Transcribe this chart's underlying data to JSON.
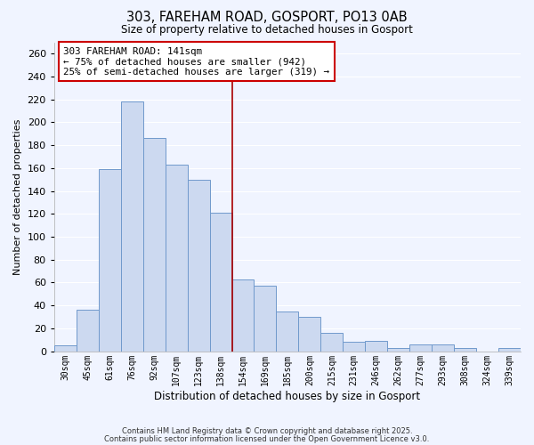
{
  "title": "303, FAREHAM ROAD, GOSPORT, PO13 0AB",
  "subtitle": "Size of property relative to detached houses in Gosport",
  "xlabel": "Distribution of detached houses by size in Gosport",
  "ylabel": "Number of detached properties",
  "bar_color": "#ccd9f0",
  "bar_edge_color": "#7099cc",
  "background_color": "#f0f4ff",
  "grid_color": "#ffffff",
  "categories": [
    "30sqm",
    "45sqm",
    "61sqm",
    "76sqm",
    "92sqm",
    "107sqm",
    "123sqm",
    "138sqm",
    "154sqm",
    "169sqm",
    "185sqm",
    "200sqm",
    "215sqm",
    "231sqm",
    "246sqm",
    "262sqm",
    "277sqm",
    "293sqm",
    "308sqm",
    "324sqm",
    "339sqm"
  ],
  "values": [
    5,
    36,
    159,
    218,
    186,
    163,
    150,
    121,
    63,
    57,
    35,
    30,
    16,
    8,
    9,
    3,
    6,
    6,
    3,
    0,
    3
  ],
  "vline_color": "#aa0000",
  "annotation_title": "303 FAREHAM ROAD: 141sqm",
  "annotation_line1": "← 75% of detached houses are smaller (942)",
  "annotation_line2": "25% of semi-detached houses are larger (319) →",
  "annotation_box_edge": "#cc0000",
  "ylim": [
    0,
    270
  ],
  "yticks": [
    0,
    20,
    40,
    60,
    80,
    100,
    120,
    140,
    160,
    180,
    200,
    220,
    240,
    260
  ],
  "footer1": "Contains HM Land Registry data © Crown copyright and database right 2025.",
  "footer2": "Contains public sector information licensed under the Open Government Licence v3.0."
}
